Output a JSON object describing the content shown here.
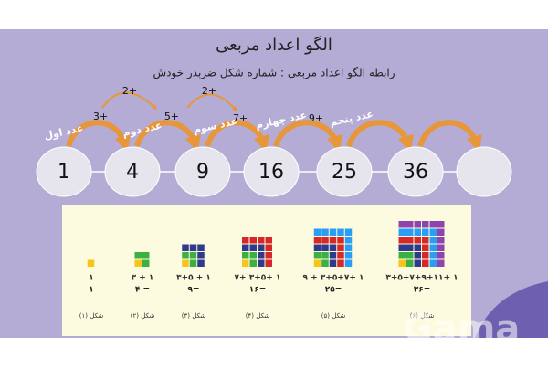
{
  "title": "الگو اعداد مربعی",
  "subtitle": "رابطه الگو اعداد مربعی : شماره شکل ضربدر خودش",
  "sequence": [
    1,
    4,
    9,
    16,
    25,
    36
  ],
  "sequence_labels": [
    "عدد اول",
    "عدد دوم",
    "عدد سوم",
    "عدد چهارم",
    "عدد پنجم"
  ],
  "differences": [
    "3+",
    "5+",
    "7+",
    "9+"
  ],
  "second_differences": [
    "2+",
    "2+"
  ],
  "figures": [
    {
      "formula": "۱",
      "result": "۱",
      "caption": "شکل (۱)"
    },
    {
      "formula": "۱ + ۳",
      "result": "= ۴",
      "caption": "شکل (۲)"
    },
    {
      "formula": "۱ + ۳+۵",
      "result": "=۹",
      "caption": "شکل (۳)"
    },
    {
      "formula": "۱ +۳+۵ +۷",
      "result": "=۱۶",
      "caption": "شکل (۴)"
    },
    {
      "formula": "۱ +۳+۵+۷ + ۹",
      "result": "=۲۵",
      "caption": "شکل (۵)"
    },
    {
      "formula": "۱ +۳+۵+۷+۹+۱۱",
      "result": "=۳۶",
      "caption": "شکل (۶)"
    }
  ],
  "watermark": "Gama"
}
